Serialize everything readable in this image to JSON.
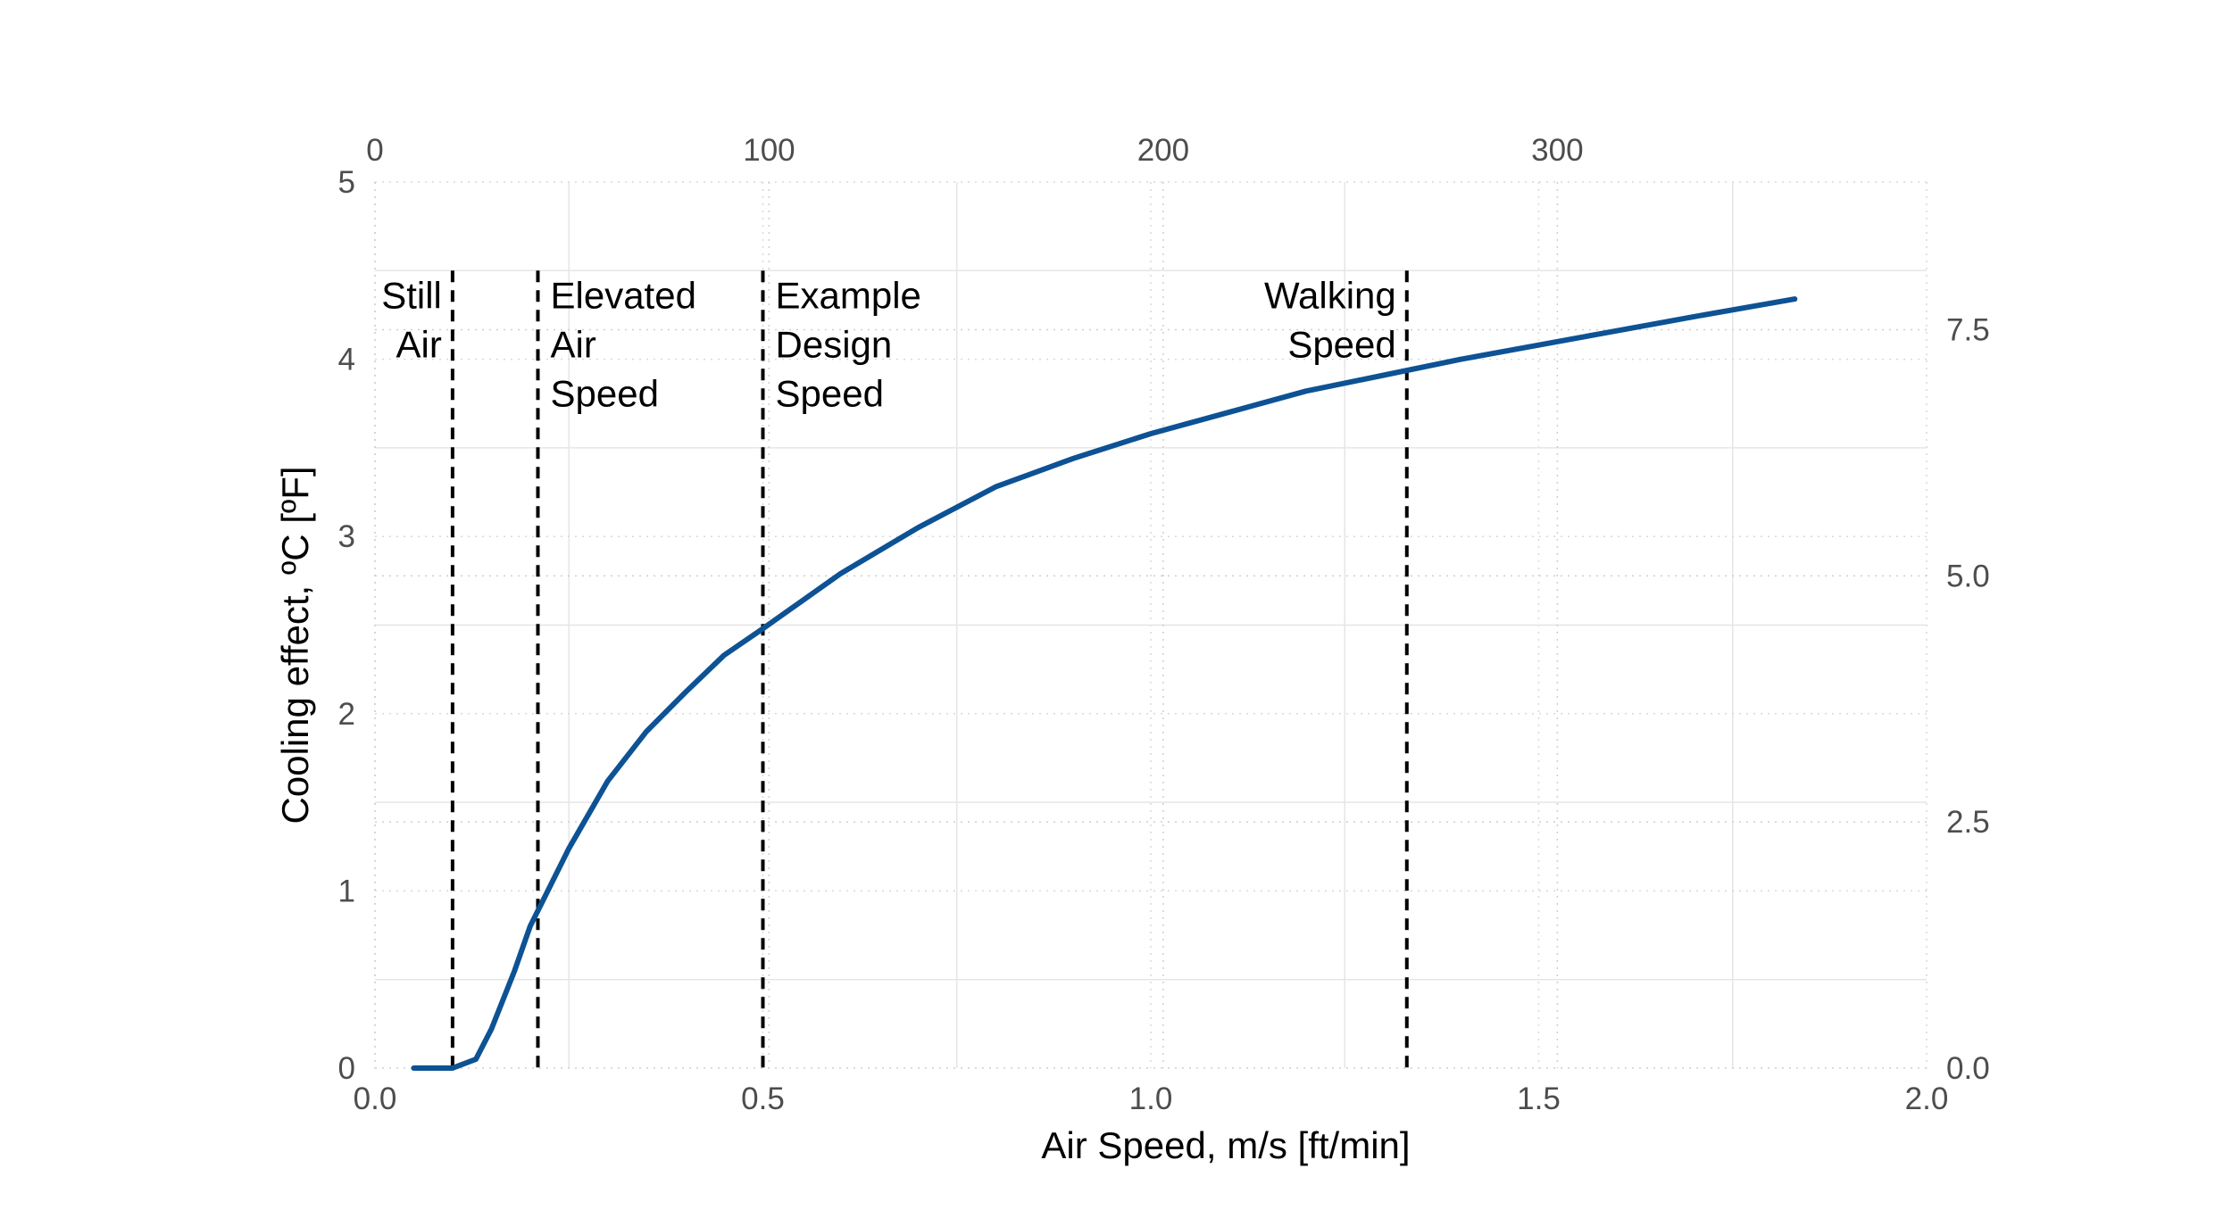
{
  "chart_data": {
    "type": "line",
    "xlabel": "Air Speed, m/s [ft/min]",
    "ylabel": "Cooling effect, ºC [ºF]",
    "xlim": [
      0,
      2.0
    ],
    "ylim": [
      0,
      5
    ],
    "x_ticks": [
      "0.0",
      "0.5",
      "1.0",
      "1.5",
      "2.0"
    ],
    "y_ticks": [
      "0",
      "1",
      "2",
      "3",
      "4",
      "5"
    ],
    "secondary_x": {
      "ticks": [
        0,
        100,
        200,
        300
      ],
      "tick_labels": [
        "0",
        "100",
        "200",
        "300"
      ],
      "unit": "ft/min"
    },
    "secondary_y": {
      "ticks": [
        0.0,
        2.5,
        5.0,
        7.5
      ],
      "tick_labels": [
        "0.0",
        "2.5",
        "5.0",
        "7.5"
      ],
      "unit": "ºF"
    },
    "grid": true,
    "series": [
      {
        "color": "#0d5294",
        "x": [
          0.05,
          0.08,
          0.1,
          0.13,
          0.15,
          0.18,
          0.2,
          0.25,
          0.3,
          0.35,
          0.4,
          0.45,
          0.5,
          0.6,
          0.7,
          0.8,
          0.9,
          1.0,
          1.1,
          1.2,
          1.3,
          1.4,
          1.5,
          1.6,
          1.7,
          1.83
        ],
        "y": [
          0.0,
          0.0,
          0.0,
          0.05,
          0.22,
          0.55,
          0.8,
          1.24,
          1.62,
          1.9,
          2.12,
          2.33,
          2.48,
          2.79,
          3.05,
          3.28,
          3.44,
          3.58,
          3.7,
          3.82,
          3.91,
          4.0,
          4.08,
          4.16,
          4.24,
          4.34
        ]
      }
    ],
    "reference_lines": [
      {
        "x": 0.1,
        "label": [
          "Still",
          "Air"
        ],
        "label_side": "left"
      },
      {
        "x": 0.21,
        "label": [
          "Elevated",
          "Air",
          "Speed"
        ],
        "label_side": "right"
      },
      {
        "x": 0.5,
        "label": [
          "Example",
          "Design",
          "Speed"
        ],
        "label_side": "right"
      },
      {
        "x": 1.33,
        "label": [
          "Walking",
          "Speed"
        ],
        "label_side": "left"
      }
    ]
  }
}
